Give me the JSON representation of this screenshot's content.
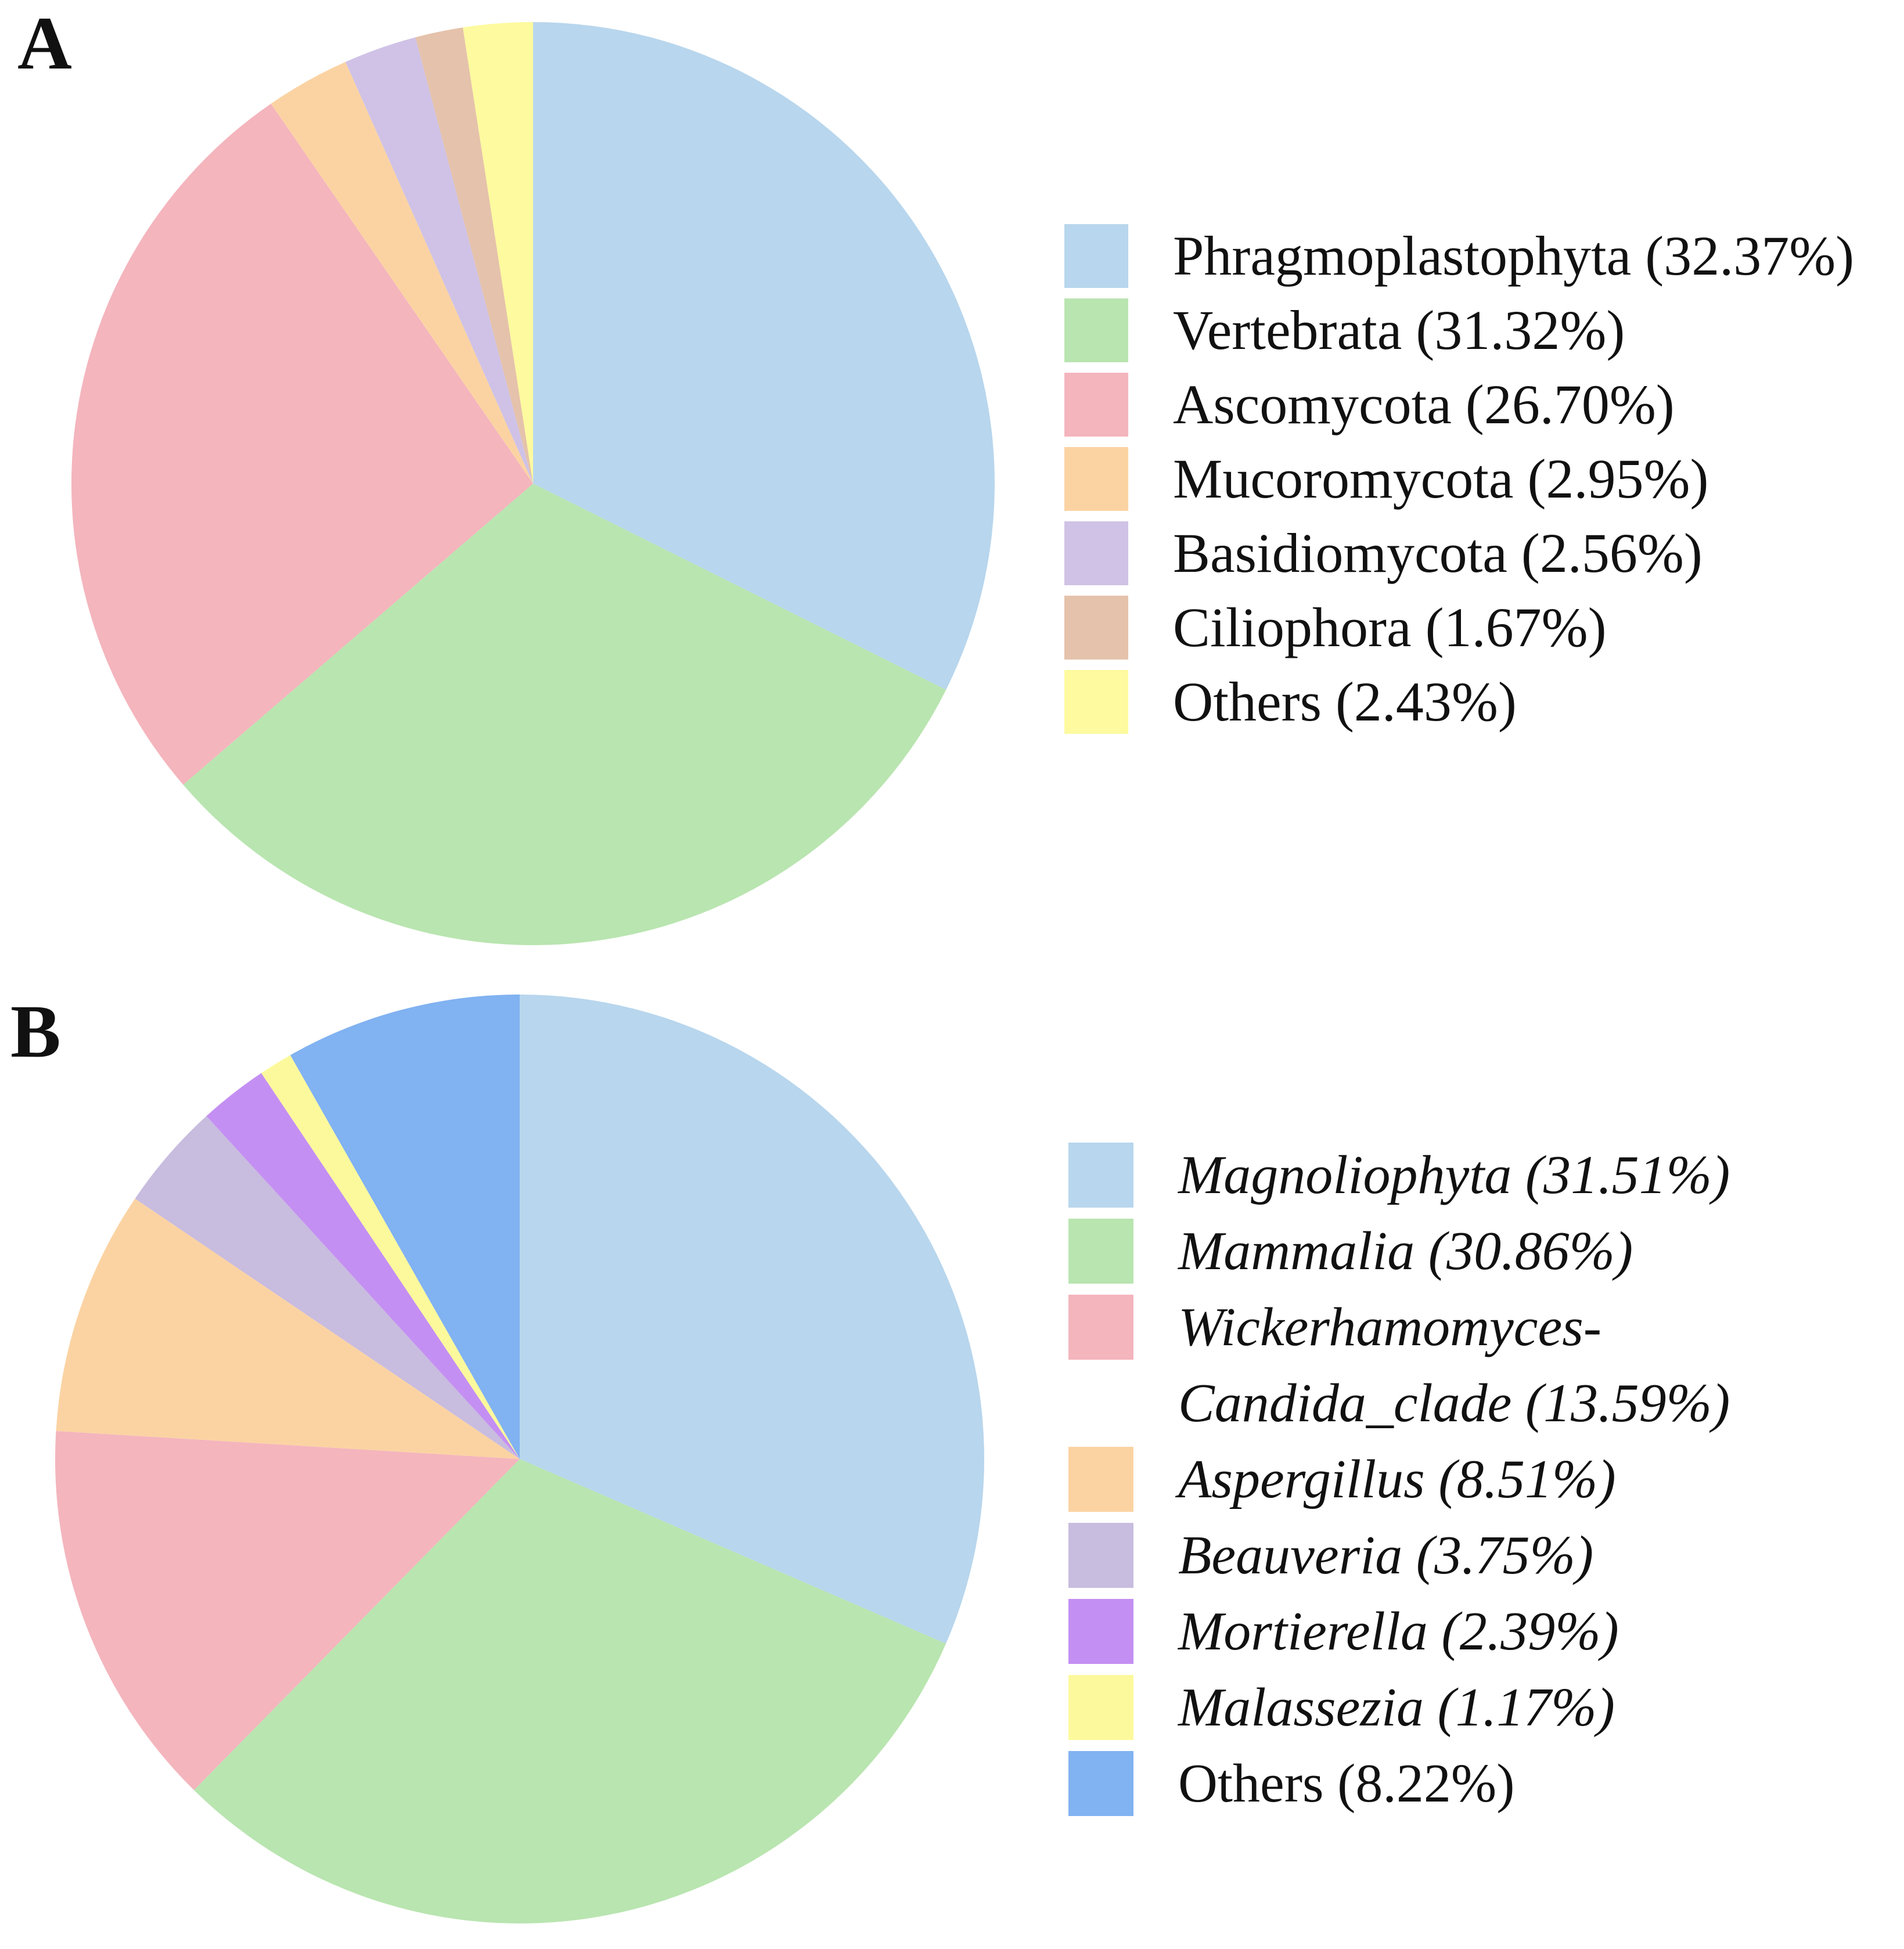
{
  "figure_background": "#ffffff",
  "panels": [
    {
      "label": "A",
      "legend_rows": [
        {
          "swatch": "#b8d6ed",
          "text": "Phragmoplastophyta (32.37%)",
          "italic": false
        },
        {
          "swatch": "#b9e5b0",
          "text": "Vertebrata (31.32%)",
          "italic": false
        },
        {
          "swatch": "#f4b5bd",
          "text": "Ascomycota (26.70%)",
          "italic": false
        },
        {
          "swatch": "#fbd3a3",
          "text": "Mucoromycota (2.95%)",
          "italic": false
        },
        {
          "swatch": "#cfc2e6",
          "text": "Basidiomycota (2.56%)",
          "italic": false
        },
        {
          "swatch": "#e5c2ab",
          "text": "Ciliophora (1.67%)",
          "italic": false
        },
        {
          "swatch": "#fdfa9f",
          "text": "Others (2.43%)",
          "italic": false
        }
      ]
    },
    {
      "label": "B",
      "legend_rows": [
        {
          "swatch": "#b8d6ed",
          "text": "Magnoliophyta (31.51%)",
          "italic": true
        },
        {
          "swatch": "#b9e5b0",
          "text": "Mammalia (30.86%)",
          "italic": true
        },
        {
          "swatch": "#f4b5bd",
          "text": "Wickerhamomyces-",
          "italic": true
        },
        {
          "swatch": null,
          "text": "Candida_clade (13.59%)",
          "italic": true
        },
        {
          "swatch": "#fbd3a3",
          "text": "Aspergillus (8.51%)",
          "italic": true
        },
        {
          "swatch": "#c8bcdf",
          "text": "Beauveria (3.75%)",
          "italic": true
        },
        {
          "swatch": "#c48ff2",
          "text": "Mortierella (2.39%)",
          "italic": true
        },
        {
          "swatch": "#fcf99d",
          "text": "Malassezia (1.17%)",
          "italic": true
        },
        {
          "swatch": "#81b2f1",
          "text": "Others (8.22%)",
          "italic": false
        }
      ]
    }
  ],
  "chart_data": [
    {
      "type": "pie",
      "title": "A",
      "labels": [
        "Phragmoplastophyta",
        "Vertebrata",
        "Ascomycota",
        "Mucoromycota",
        "Basidiomycota",
        "Ciliophora",
        "Others"
      ],
      "values": [
        32.37,
        31.32,
        26.7,
        2.95,
        2.56,
        1.67,
        2.43
      ],
      "colors": [
        "#b8d6ed",
        "#b9e5b0",
        "#f4b5bd",
        "#fbd3a3",
        "#cfc2e6",
        "#e5c2ab",
        "#fdfa9f"
      ],
      "unit": "%",
      "start_angle": "12-oclock",
      "direction": "clockwise",
      "legend_position": "right"
    },
    {
      "type": "pie",
      "title": "B",
      "labels": [
        "Magnoliophyta",
        "Mammalia",
        "Wickerhamomyces-Candida_clade",
        "Aspergillus",
        "Beauveria",
        "Mortierella",
        "Malassezia",
        "Others"
      ],
      "values": [
        31.51,
        30.86,
        13.59,
        8.51,
        3.75,
        2.39,
        1.17,
        8.22
      ],
      "colors": [
        "#b8d6ed",
        "#b9e5b0",
        "#f4b5bd",
        "#fbd3a3",
        "#c8bcdf",
        "#c48ff2",
        "#fcf99d",
        "#81b2f1"
      ],
      "unit": "%",
      "start_angle": "12-oclock",
      "direction": "clockwise",
      "legend_position": "right"
    }
  ]
}
